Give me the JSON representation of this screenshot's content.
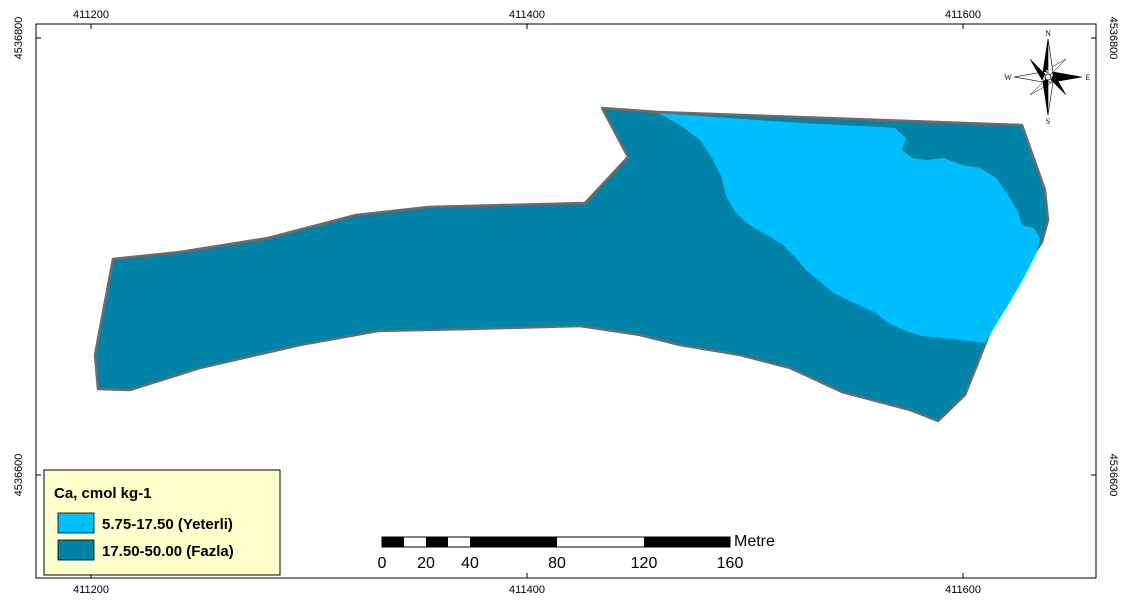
{
  "grid_labels": {
    "top": [
      "411200",
      "411400",
      "411600"
    ],
    "bottom": [
      "411200",
      "411400",
      "411600"
    ],
    "left": [
      "4536800",
      "4536600"
    ],
    "right": [
      "4536800",
      "4536600"
    ]
  },
  "legend": {
    "title": "Ca, cmol kg-1",
    "items": [
      {
        "label": "5.75-17.50 (Yeterli)",
        "color": "#00bfff"
      },
      {
        "label": "17.50-50.00 (Fazla)",
        "color": "#0083a6"
      }
    ]
  },
  "scale_bar": {
    "unit": "Metre",
    "ticks": [
      "0",
      "20",
      "40",
      "80",
      "120",
      "160"
    ]
  },
  "north_arrow": {
    "icon": "compass-rose-icon",
    "labels": [
      "N",
      "S",
      "E",
      "W"
    ]
  },
  "colors": {
    "field_fill": "#0083a6",
    "sufficient_fill": "#00bfff",
    "outline": "#6b6b6b",
    "legend_bg": "#ffffcc"
  }
}
